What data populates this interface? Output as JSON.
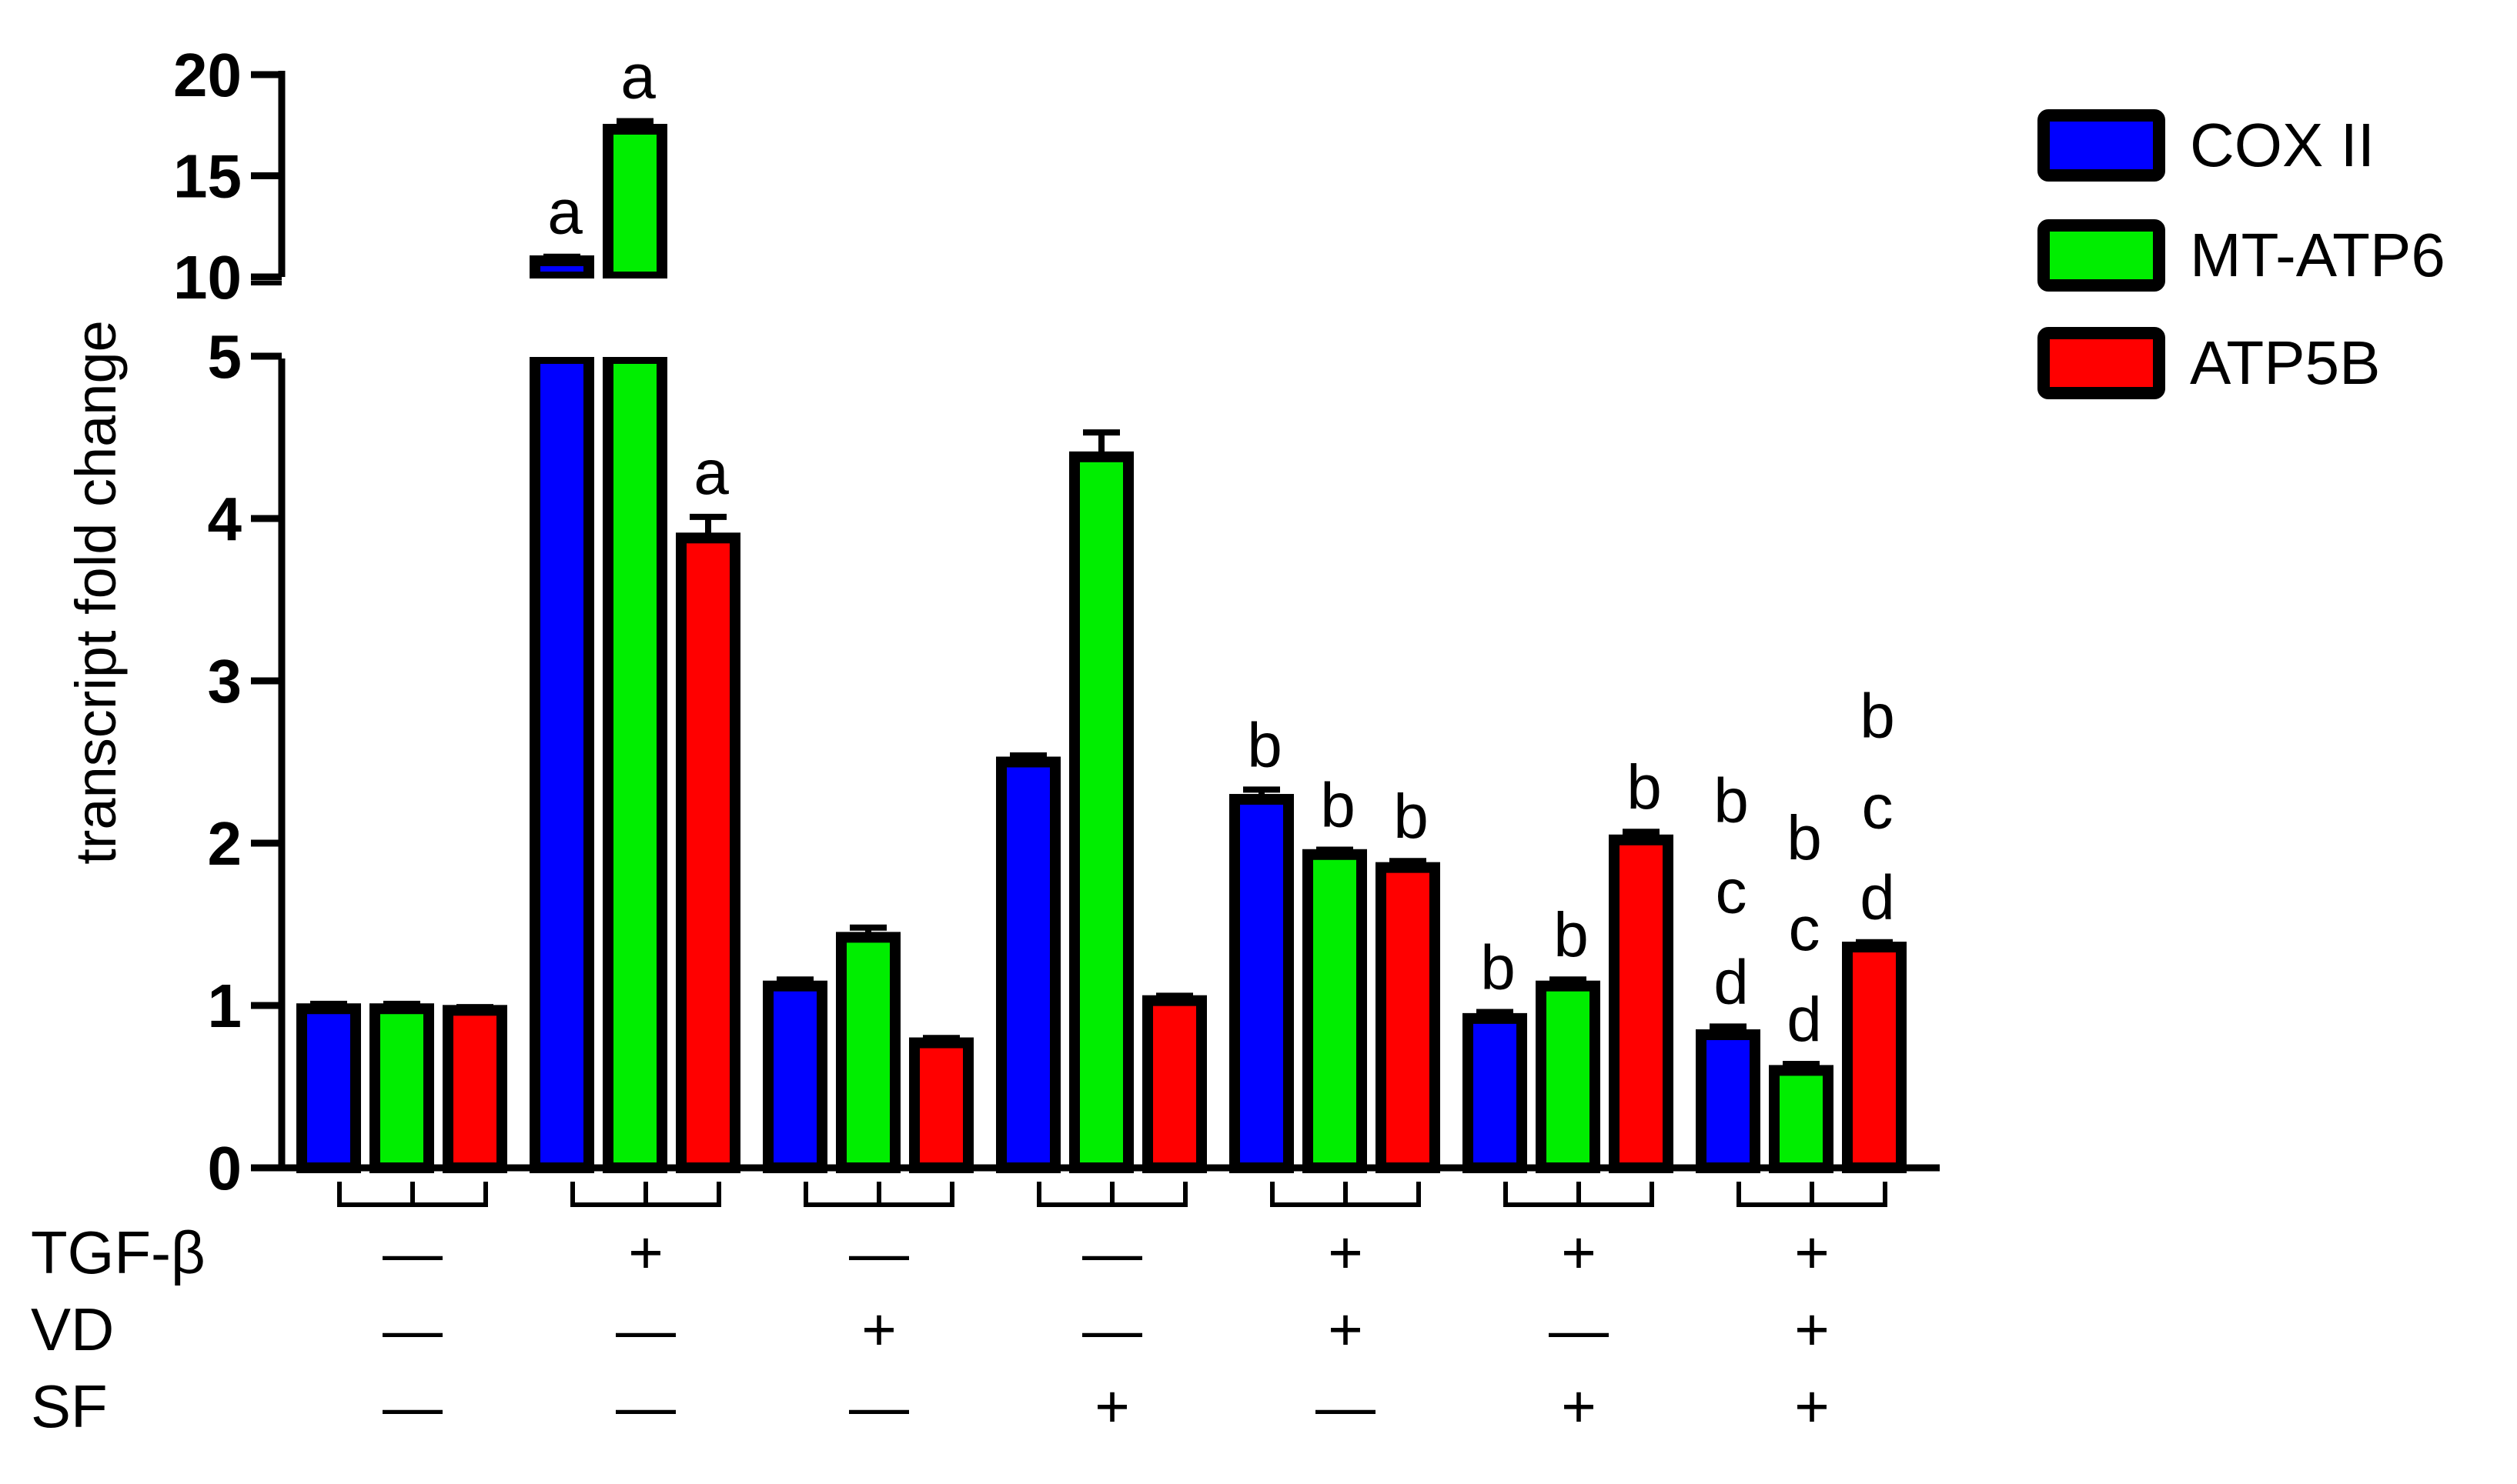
{
  "chart_data": {
    "type": "bar",
    "ylabel": "transcript fold change",
    "axis_break": {
      "lower_range": [
        0,
        5
      ],
      "upper_range": [
        10,
        20
      ]
    },
    "y_ticks_lower": [
      "0",
      "1",
      "2",
      "3",
      "4",
      "5"
    ],
    "y_ticks_upper": [
      "10",
      "15",
      "20"
    ],
    "series": [
      {
        "name": "COX II",
        "color": "#0000ff",
        "values": [
          0.98,
          10.8,
          1.12,
          2.5,
          2.27,
          0.92,
          0.82
        ],
        "errors": [
          0.03,
          0.2,
          0.04,
          0.04,
          0.06,
          0.04,
          0.05
        ],
        "letters": [
          [],
          [
            "a"
          ],
          [],
          [],
          [
            "b"
          ],
          [
            "b"
          ],
          [
            "b",
            "c",
            "d"
          ]
        ]
      },
      {
        "name": "MT-ATP6",
        "color": "#00ee00",
        "values": [
          0.98,
          17.3,
          1.42,
          4.38,
          1.93,
          1.12,
          0.6
        ],
        "errors": [
          0.03,
          0.4,
          0.06,
          0.15,
          0.03,
          0.04,
          0.04
        ],
        "letters": [
          [],
          [
            "a"
          ],
          [],
          [],
          [
            "b"
          ],
          [
            "b"
          ],
          [
            "b",
            "c",
            "d"
          ]
        ]
      },
      {
        "name": "ATP5B",
        "color": "#ff0000",
        "values": [
          0.97,
          3.88,
          0.77,
          1.03,
          1.85,
          2.02,
          1.36
        ],
        "errors": [
          0.02,
          0.13,
          0.03,
          0.03,
          0.04,
          0.05,
          0.03
        ],
        "letters": [
          [],
          [
            "a"
          ],
          [],
          [],
          [
            "b"
          ],
          [
            "b"
          ],
          [
            "b",
            "c",
            "d"
          ]
        ]
      }
    ],
    "conditions": [
      {
        "label": "TGF-β",
        "signs": [
          "—",
          "+",
          "—",
          "—",
          "+",
          "+",
          "+"
        ]
      },
      {
        "label": "VD",
        "signs": [
          "—",
          "—",
          "+",
          "—",
          "+",
          "—",
          "+"
        ]
      },
      {
        "label": "SF",
        "signs": [
          "—",
          "—",
          "—",
          "+",
          "—",
          "+",
          "+"
        ]
      }
    ],
    "legend_position": "top-right"
  }
}
